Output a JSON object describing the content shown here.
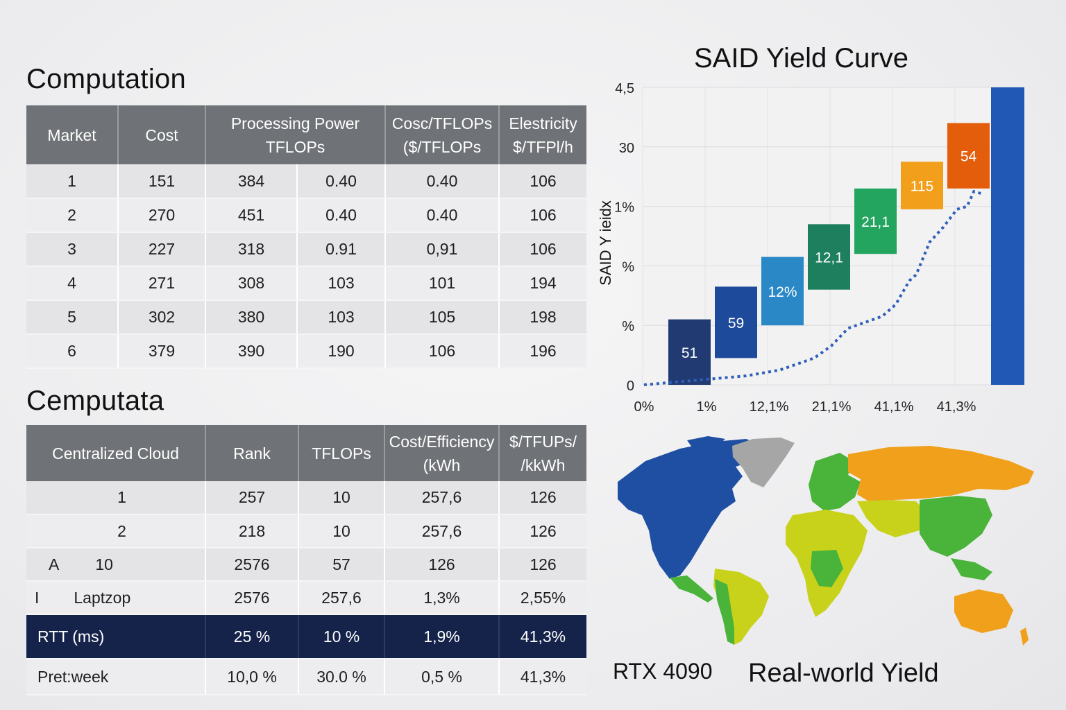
{
  "computation": {
    "title": "Computation",
    "headers": [
      "Market",
      "Cost",
      "Processing Power",
      "TFLOPs",
      "Cosc/TFLOPs",
      "($/TFLOPs",
      "Elestricity",
      "$/TFPl/h"
    ],
    "rows": [
      [
        "1",
        "151",
        "384",
        "0.40",
        "0.40",
        "106"
      ],
      [
        "2",
        "270",
        "451",
        "0.40",
        "0.40",
        "106"
      ],
      [
        "3",
        "227",
        "318",
        "0.91",
        "0,91",
        "106"
      ],
      [
        "4",
        "271",
        "308",
        "103",
        "101",
        "194"
      ],
      [
        "5",
        "302",
        "380",
        "103",
        "105",
        "198"
      ],
      [
        "6",
        "379",
        "390",
        "190",
        "106",
        "196"
      ]
    ]
  },
  "cemputata": {
    "title": "Cemputata",
    "headers": [
      "Centralized Cloud",
      "Rank",
      "TFLOPs",
      "Cost/Efficiency",
      "(kWh",
      "$/TFUPs/",
      "/kkWh"
    ],
    "rows": [
      [
        "1",
        "257",
        "10",
        "257,6",
        "126"
      ],
      [
        "2",
        "218",
        "10",
        "257,6",
        "126"
      ],
      [
        "10",
        "2576",
        "57",
        "126",
        "126"
      ],
      [
        "Laptzop",
        "2576",
        "257,6",
        "1,3%",
        "2,55%"
      ]
    ],
    "row_prefixes": [
      "",
      "",
      "A",
      "I"
    ],
    "summary_row": [
      "RTT (ms)",
      "25 %",
      "10 %",
      "1,9%",
      "41,3%"
    ],
    "footer_row": [
      "Pret:week",
      "10,0 %",
      "30.0 %",
      "0,5 %",
      "41,3%"
    ]
  },
  "chart_data": {
    "type": "bar",
    "title": "SAID Yield Curve",
    "ylabel": "SAID Y ieidx",
    "xlabel": "",
    "y_tick_labels": [
      "4,5",
      "30",
      "1%",
      "%",
      "%",
      "0"
    ],
    "x_tick_labels": [
      "0%",
      "1%",
      "12,1%",
      "21,1%",
      "41,1%",
      "41,3%"
    ],
    "ylim": [
      0,
      5
    ],
    "bars": [
      {
        "label": "51",
        "low": 0.0,
        "high": 1.1,
        "color": "#213a72"
      },
      {
        "label": "59",
        "low": 0.45,
        "high": 1.65,
        "color": "#1e4a9b"
      },
      {
        "label": "12%",
        "low": 1.0,
        "high": 2.15,
        "color": "#2a88c6"
      },
      {
        "label": "12,1",
        "low": 1.6,
        "high": 2.7,
        "color": "#1d7f5e"
      },
      {
        "label": "21,1",
        "low": 2.2,
        "high": 3.3,
        "color": "#23a55f"
      },
      {
        "label": "115",
        "low": 2.95,
        "high": 3.75,
        "color": "#f2a01b"
      },
      {
        "label": "54",
        "low": 3.3,
        "high": 4.4,
        "color": "#e35d0b"
      },
      {
        "label": "",
        "low": 0.0,
        "high": 5.0,
        "color": "#2258b5"
      }
    ],
    "curve": [
      [
        0,
        0.0
      ],
      [
        0.1,
        0.05
      ],
      [
        0.2,
        0.1
      ],
      [
        0.3,
        0.15
      ],
      [
        0.4,
        0.25
      ],
      [
        0.45,
        0.35
      ],
      [
        0.5,
        0.45
      ],
      [
        0.55,
        0.65
      ],
      [
        0.6,
        0.95
      ],
      [
        0.65,
        1.05
      ],
      [
        0.7,
        1.15
      ],
      [
        0.74,
        1.35
      ],
      [
        0.78,
        1.75
      ],
      [
        0.8,
        1.85
      ],
      [
        0.84,
        2.4
      ],
      [
        0.88,
        2.65
      ],
      [
        0.92,
        2.95
      ],
      [
        0.95,
        3.0
      ],
      [
        0.97,
        3.25
      ],
      [
        1.0,
        3.2
      ]
    ],
    "curve_color": "#2f5fb9",
    "grid": true
  },
  "map": {
    "left_label": "RTX 4090",
    "right_label": "Real-world Yield",
    "colors": {
      "blue": "#1f4fa3",
      "grey": "#a6a6a6",
      "orange": "#f0a01a",
      "yellow": "#c9d21a",
      "green": "#4ab33a"
    }
  }
}
